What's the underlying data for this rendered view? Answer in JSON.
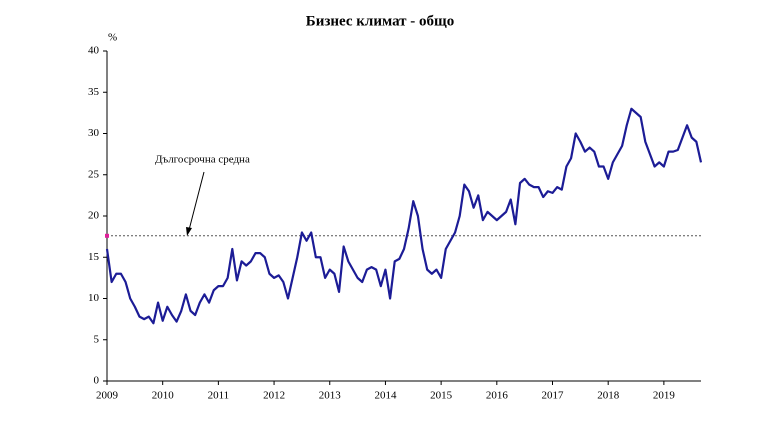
{
  "chart_data": {
    "type": "line",
    "title": "Бизнес климат - общо",
    "y_unit": "%",
    "categories": [
      "2009",
      null,
      null,
      null,
      null,
      null,
      null,
      null,
      null,
      null,
      null,
      null,
      "2010",
      null,
      null,
      null,
      null,
      null,
      null,
      null,
      null,
      null,
      null,
      null,
      "2011",
      null,
      null,
      null,
      null,
      null,
      null,
      null,
      null,
      null,
      null,
      null,
      "2012",
      null,
      null,
      null,
      null,
      null,
      null,
      null,
      null,
      null,
      null,
      null,
      "2013",
      null,
      null,
      null,
      null,
      null,
      null,
      null,
      null,
      null,
      null,
      null,
      "2014",
      null,
      null,
      null,
      null,
      null,
      null,
      null,
      null,
      null,
      null,
      null,
      "2015",
      null,
      null,
      null,
      null,
      null,
      null,
      null,
      null,
      null,
      null,
      null,
      "2016",
      null,
      null,
      null,
      null,
      null,
      null,
      null,
      null,
      null,
      null,
      null,
      "2017",
      null,
      null,
      null,
      null,
      null,
      null,
      null,
      null,
      null,
      null,
      null,
      "2018",
      null,
      null,
      null,
      null,
      null,
      null,
      null,
      null,
      null,
      null,
      null,
      "2019",
      null,
      null,
      null,
      null,
      null,
      null,
      null,
      null
    ],
    "series": [
      {
        "color": "#1c1c96",
        "values": [
          16,
          12,
          13,
          13,
          12,
          10,
          9,
          7.8,
          7.5,
          7.8,
          7,
          9.5,
          7.3,
          9,
          8,
          7.2,
          8.5,
          10.5,
          8.5,
          8,
          9.5,
          10.5,
          9.5,
          11,
          11.5,
          11.5,
          12.5,
          16,
          12.2,
          14.5,
          14,
          14.5,
          15.5,
          15.5,
          15,
          13,
          12.5,
          12.8,
          12,
          10,
          12.5,
          15,
          18,
          17,
          18,
          15,
          15,
          12.5,
          13.5,
          13,
          10.8,
          16.3,
          14.5,
          13.5,
          12.5,
          12,
          13.5,
          13.8,
          13.5,
          11.5,
          13.5,
          10,
          14.5,
          14.8,
          16,
          18.5,
          21.8,
          20,
          16,
          13.5,
          13,
          13.5,
          12.5,
          16,
          17,
          18,
          20,
          23.8,
          23,
          21,
          22.5,
          19.5,
          20.5,
          20,
          19.5,
          20,
          20.5,
          22,
          19,
          24,
          24.5,
          23.8,
          23.5,
          23.5,
          22.3,
          23,
          22.8,
          23.5,
          23.2,
          26,
          27,
          30,
          29,
          27.8,
          28.3,
          27.8,
          26,
          26,
          24.5,
          26.5,
          27.5,
          28.5,
          31,
          33,
          32.5,
          32,
          29,
          27.5,
          26,
          26.5,
          26,
          27.8,
          27.8,
          28,
          29.5,
          31,
          29.5,
          29,
          26.5
        ]
      }
    ],
    "reference_line": {
      "label": "Дългосрочна средна",
      "value": 17.6
    },
    "ylim": [
      0,
      40
    ],
    "yticks": [
      0,
      5,
      10,
      15,
      20,
      25,
      30,
      35,
      40
    ]
  }
}
